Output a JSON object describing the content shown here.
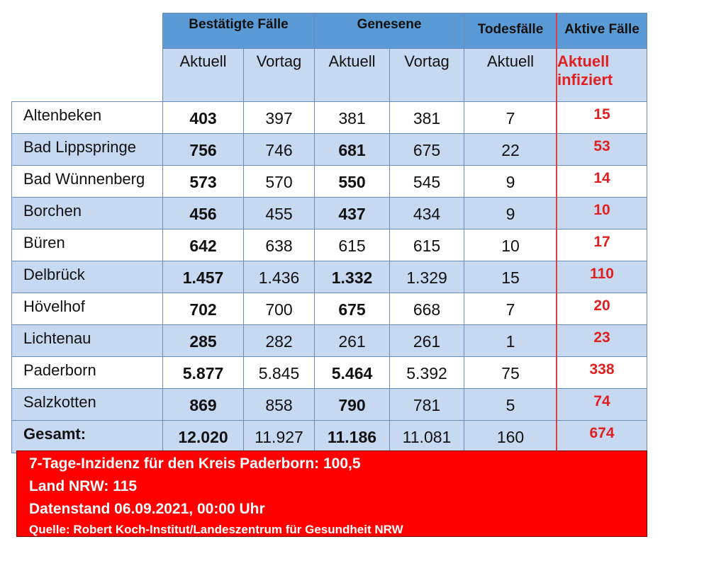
{
  "headers": {
    "bestaetigt": "Bestätigte Fälle",
    "genesene": "Genesene",
    "todesfaelle": "Todesfälle",
    "aktive": "Aktive Fälle",
    "aktuell": "Aktuell",
    "vortag": "Vortag",
    "aktuell_infiziert_1": "Aktuell",
    "aktuell_infiziert_2": "infiziert"
  },
  "rows": [
    {
      "name": "Altenbeken",
      "best_akt": "403",
      "best_vor": "397",
      "gen_akt": "381",
      "gen_vor": "381",
      "tod": "7",
      "aktiv": "15"
    },
    {
      "name": "Bad Lippspringe",
      "best_akt": "756",
      "best_vor": "746",
      "gen_akt": "681",
      "gen_vor": "675",
      "tod": "22",
      "aktiv": "53"
    },
    {
      "name": "Bad Wünnenberg",
      "best_akt": "573",
      "best_vor": "570",
      "gen_akt": "550",
      "gen_vor": "545",
      "tod": "9",
      "aktiv": "14"
    },
    {
      "name": "Borchen",
      "best_akt": "456",
      "best_vor": "455",
      "gen_akt": "437",
      "gen_vor": "434",
      "tod": "9",
      "aktiv": "10"
    },
    {
      "name": "Büren",
      "best_akt": "642",
      "best_vor": "638",
      "gen_akt": "615",
      "gen_vor": "615",
      "tod": "10",
      "aktiv": "17"
    },
    {
      "name": "Delbrück",
      "best_akt": "1.457",
      "best_vor": "1.436",
      "gen_akt": "1.332",
      "gen_vor": "1.329",
      "tod": "15",
      "aktiv": "110"
    },
    {
      "name": "Hövelhof",
      "best_akt": "702",
      "best_vor": "700",
      "gen_akt": "675",
      "gen_vor": "668",
      "tod": "7",
      "aktiv": "20"
    },
    {
      "name": "Lichtenau",
      "best_akt": "285",
      "best_vor": "282",
      "gen_akt": "261",
      "gen_vor": "261",
      "tod": "1",
      "aktiv": "23"
    },
    {
      "name": "Paderborn",
      "best_akt": "5.877",
      "best_vor": "5.845",
      "gen_akt": "5.464",
      "gen_vor": "5.392",
      "tod": "75",
      "aktiv": "338"
    },
    {
      "name": "Salzkotten",
      "best_akt": "869",
      "best_vor": "858",
      "gen_akt": "790",
      "gen_vor": "781",
      "tod": "5",
      "aktiv": "74"
    }
  ],
  "total": {
    "name": "Gesamt:",
    "best_akt": "12.020",
    "best_vor": "11.927",
    "gen_akt": "11.186",
    "gen_vor": "11.081",
    "tod": "160",
    "aktiv": "674"
  },
  "gen_bold": [
    false,
    true,
    true,
    true,
    false,
    true,
    true,
    false,
    true,
    true
  ],
  "footer": {
    "line1": "7-Tage-Inzidenz für den Kreis Paderborn: 100,5",
    "line2": "Land NRW: 115",
    "line3": "Datenstand 06.09.2021, 00:00 Uhr",
    "line4": "Quelle: Robert Koch-Institut/Landeszentrum für Gesundheit NRW"
  },
  "colors": {
    "header_blue": "#5b9bd5",
    "light_blue": "#c6d9f1",
    "accent_red": "#ff0000",
    "text_red": "#e02020"
  }
}
